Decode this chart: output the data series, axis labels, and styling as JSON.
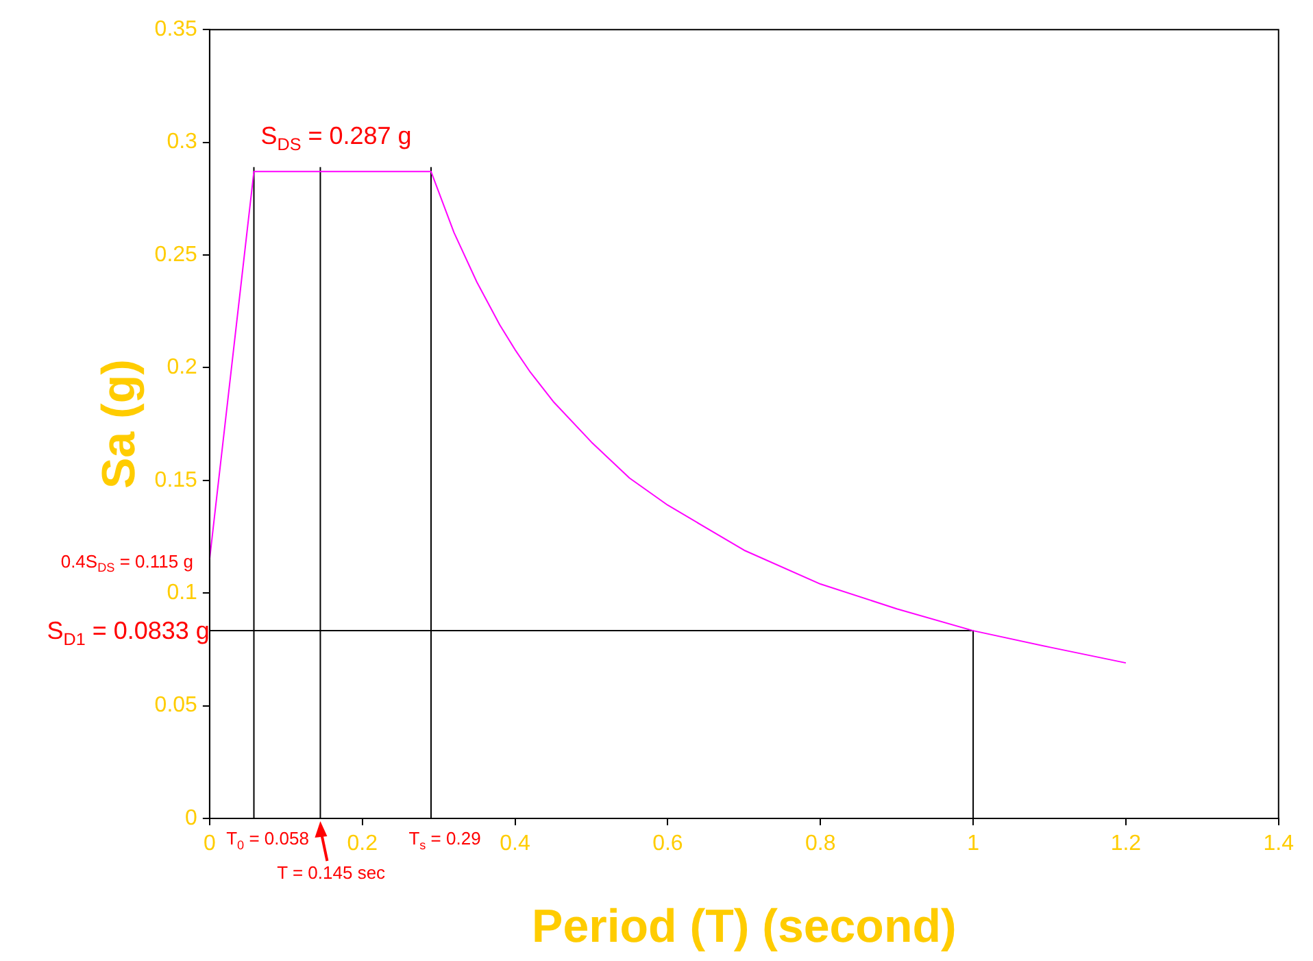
{
  "chart_data": {
    "type": "line",
    "xlabel": "Period (T) (second)",
    "ylabel": "Sa (g)",
    "xlim": [
      0,
      1.4
    ],
    "xticks": [
      0,
      0.2,
      0.4,
      0.6,
      0.8,
      1,
      1.2,
      1.4
    ],
    "ylim": [
      0,
      0.35
    ],
    "yticks": [
      0,
      0.05,
      0.1,
      0.15,
      0.2,
      0.25,
      0.3,
      0.35
    ],
    "grid": false,
    "legend": false,
    "marker": "none",
    "line_style": "solid",
    "series": [
      {
        "color": "#ff00ff",
        "x": [
          0,
          0.058,
          0.29,
          0.3,
          0.32,
          0.35,
          0.38,
          0.4,
          0.42,
          0.45,
          0.5,
          0.55,
          0.6,
          0.7,
          0.8,
          0.9,
          1,
          1.1,
          1.2
        ],
        "values": [
          0.115,
          0.287,
          0.287,
          0.278,
          0.26,
          0.238,
          0.219,
          0.208,
          0.198,
          0.185,
          0.167,
          0.151,
          0.139,
          0.119,
          0.104,
          0.093,
          0.0833,
          0.076,
          0.069
        ]
      },
      {
        "color": "#000000",
        "x": [
          0.058,
          0.058
        ],
        "values": [
          0,
          0.289
        ]
      },
      {
        "color": "#000000",
        "x": [
          0.145,
          0.145
        ],
        "values": [
          0,
          0.289
        ]
      },
      {
        "color": "#000000",
        "x": [
          0.29,
          0.29
        ],
        "values": [
          0,
          0.289
        ]
      },
      {
        "color": "#000000",
        "x": [
          0,
          1,
          1
        ],
        "values": [
          0.0833,
          0.0833,
          0
        ]
      }
    ],
    "annotations": [
      {
        "text": "S$_{DS}$ = 0.287 g",
        "x": 0.058,
        "y": 0.287
      },
      {
        "text": "0.4S$_{DS}$ = 0.115 g",
        "x": 0,
        "y": 0.115
      },
      {
        "text": "S$_{D1}$ = 0.0833 g",
        "x": 0,
        "y": 0.0833
      },
      {
        "text": "T$_{0}$ = 0.058",
        "x": 0.058,
        "y": 0
      },
      {
        "text": "T = 0.145 sec",
        "x": 0.145,
        "y": 0
      },
      {
        "text": "T$_{s}$ = 0.29",
        "x": 0.29,
        "y": 0
      }
    ]
  }
}
